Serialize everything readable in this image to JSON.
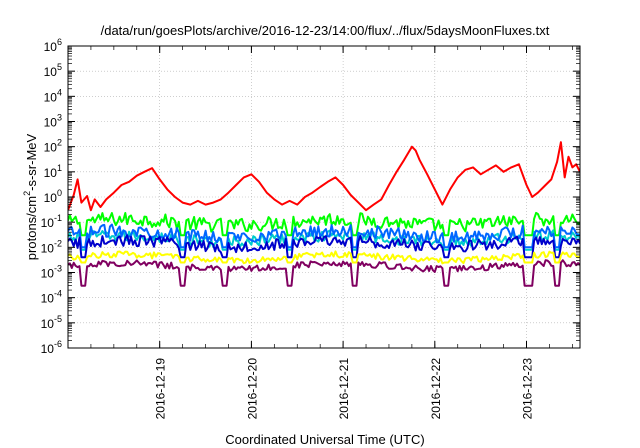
{
  "chart_data": {
    "type": "line",
    "title": "/data/run/goesPlots/archive/2016-12-23/14:00/flux/../flux/5daysMoonFluxes.txt",
    "xlabel": "Coordinated Universal Time (UTC)",
    "ylabel_parts": {
      "base": "protons/cm",
      "sup": "2",
      "rest": "-s-sr-MeV"
    },
    "x_range": [
      "2016-12-18T00:00",
      "2016-12-23T14:00"
    ],
    "x_ticks": [
      "2016-12-19",
      "2016-12-20",
      "2016-12-21",
      "2016-12-22",
      "2016-12-23"
    ],
    "y_scale": "log",
    "ylim": [
      1e-06,
      1000000.0
    ],
    "y_ticks": [
      {
        "value": 1e-06,
        "base": "10",
        "exp": "-6"
      },
      {
        "value": 1e-05,
        "base": "10",
        "exp": "-5"
      },
      {
        "value": 0.0001,
        "base": "10",
        "exp": "-4"
      },
      {
        "value": 0.001,
        "base": "10",
        "exp": "-3"
      },
      {
        "value": 0.01,
        "base": "10",
        "exp": "-2"
      },
      {
        "value": 0.1,
        "base": "10",
        "exp": "-1"
      },
      {
        "value": 1.0,
        "base": "10",
        "exp": "0"
      },
      {
        "value": 10.0,
        "base": "10",
        "exp": "1"
      },
      {
        "value": 100.0,
        "base": "10",
        "exp": "2"
      },
      {
        "value": 1000.0,
        "base": "10",
        "exp": "3"
      },
      {
        "value": 10000.0,
        "base": "10",
        "exp": "4"
      },
      {
        "value": 100000.0,
        "base": "10",
        "exp": "5"
      },
      {
        "value": 1000000.0,
        "base": "10",
        "exp": "6"
      }
    ],
    "grid": true,
    "series": [
      {
        "color": "#ff0000",
        "points": [
          [
            "2016-12-18T00:00",
            0.3
          ],
          [
            "2016-12-18T01:30",
            1.2
          ],
          [
            "2016-12-18T02:30",
            5.0
          ],
          [
            "2016-12-18T03:30",
            0.6
          ],
          [
            "2016-12-18T05:00",
            1.1
          ],
          [
            "2016-12-18T06:00",
            0.3
          ],
          [
            "2016-12-18T07:00",
            0.8
          ],
          [
            "2016-12-18T08:30",
            0.4
          ],
          [
            "2016-12-18T10:00",
            0.8
          ],
          [
            "2016-12-18T12:00",
            1.5
          ],
          [
            "2016-12-18T14:00",
            3.0
          ],
          [
            "2016-12-18T16:00",
            4.0
          ],
          [
            "2016-12-18T18:00",
            7.0
          ],
          [
            "2016-12-18T20:00",
            10
          ],
          [
            "2016-12-18T22:00",
            14
          ],
          [
            "2016-12-19T00:00",
            5.0
          ],
          [
            "2016-12-19T02:00",
            2.0
          ],
          [
            "2016-12-19T04:00",
            1.0
          ],
          [
            "2016-12-19T06:00",
            0.6
          ],
          [
            "2016-12-19T08:00",
            0.5
          ],
          [
            "2016-12-19T10:00",
            0.7
          ],
          [
            "2016-12-19T12:00",
            0.5
          ],
          [
            "2016-12-19T14:00",
            0.6
          ],
          [
            "2016-12-19T16:00",
            0.8
          ],
          [
            "2016-12-19T18:00",
            1.5
          ],
          [
            "2016-12-19T20:00",
            3.0
          ],
          [
            "2016-12-19T22:00",
            6.0
          ],
          [
            "2016-12-20T00:00",
            8.0
          ],
          [
            "2016-12-20T02:00",
            4.0
          ],
          [
            "2016-12-20T04:00",
            1.5
          ],
          [
            "2016-12-20T06:00",
            0.8
          ],
          [
            "2016-12-20T08:00",
            0.5
          ],
          [
            "2016-12-20T10:00",
            0.7
          ],
          [
            "2016-12-20T12:00",
            0.5
          ],
          [
            "2016-12-20T14:00",
            1.0
          ],
          [
            "2016-12-20T16:00",
            1.5
          ],
          [
            "2016-12-20T18:00",
            2.5
          ],
          [
            "2016-12-20T20:00",
            4.0
          ],
          [
            "2016-12-20T22:00",
            6.0
          ],
          [
            "2016-12-21T00:00",
            3.0
          ],
          [
            "2016-12-21T02:00",
            1.2
          ],
          [
            "2016-12-21T04:00",
            0.6
          ],
          [
            "2016-12-21T06:00",
            0.3
          ],
          [
            "2016-12-21T08:00",
            0.5
          ],
          [
            "2016-12-21T10:00",
            0.8
          ],
          [
            "2016-12-21T12:00",
            3.0
          ],
          [
            "2016-12-21T14:00",
            10
          ],
          [
            "2016-12-21T16:00",
            30
          ],
          [
            "2016-12-21T18:00",
            100
          ],
          [
            "2016-12-21T19:00",
            70
          ],
          [
            "2016-12-21T20:00",
            30
          ],
          [
            "2016-12-21T22:00",
            8.0
          ],
          [
            "2016-12-22T00:00",
            2.0
          ],
          [
            "2016-12-22T02:00",
            0.5
          ],
          [
            "2016-12-22T04:00",
            2.0
          ],
          [
            "2016-12-22T06:00",
            6.0
          ],
          [
            "2016-12-22T08:00",
            12
          ],
          [
            "2016-12-22T10:00",
            15
          ],
          [
            "2016-12-22T12:00",
            8.0
          ],
          [
            "2016-12-22T14:00",
            12
          ],
          [
            "2016-12-22T16:00",
            18
          ],
          [
            "2016-12-22T18:00",
            10
          ],
          [
            "2016-12-22T20:00",
            15
          ],
          [
            "2016-12-22T22:00",
            20
          ],
          [
            "2016-12-23T00:00",
            3.0
          ],
          [
            "2016-12-23T01:30",
            1.0
          ],
          [
            "2016-12-23T03:00",
            1.5
          ],
          [
            "2016-12-23T05:00",
            3.0
          ],
          [
            "2016-12-23T06:30",
            5.0
          ],
          [
            "2016-12-23T08:00",
            25
          ],
          [
            "2016-12-23T09:00",
            150
          ],
          [
            "2016-12-23T10:00",
            6.0
          ],
          [
            "2016-12-23T11:00",
            40
          ],
          [
            "2016-12-23T12:00",
            15
          ],
          [
            "2016-12-23T13:00",
            20
          ],
          [
            "2016-12-23T14:00",
            10
          ]
        ]
      },
      {
        "color": "#00ff00",
        "base": 0.1,
        "amp": 0.55,
        "dip_to": 0.03
      },
      {
        "color": "#00cccc",
        "base": 0.022,
        "amp": 0.45,
        "dip_to": 0.008
      },
      {
        "color": "#0066ff",
        "base": 0.035,
        "amp": 0.5,
        "dip_to": 0.01
      },
      {
        "color": "#0000cc",
        "base": 0.014,
        "amp": 0.45,
        "dip_to": 0.004
      },
      {
        "color": "#ffff00",
        "base": 0.004,
        "amp": 0.25,
        "dip_to": 0.0025
      },
      {
        "color": "#800060",
        "base": 0.0018,
        "amp": 0.25,
        "dip_to": 0.0003
      }
    ]
  }
}
